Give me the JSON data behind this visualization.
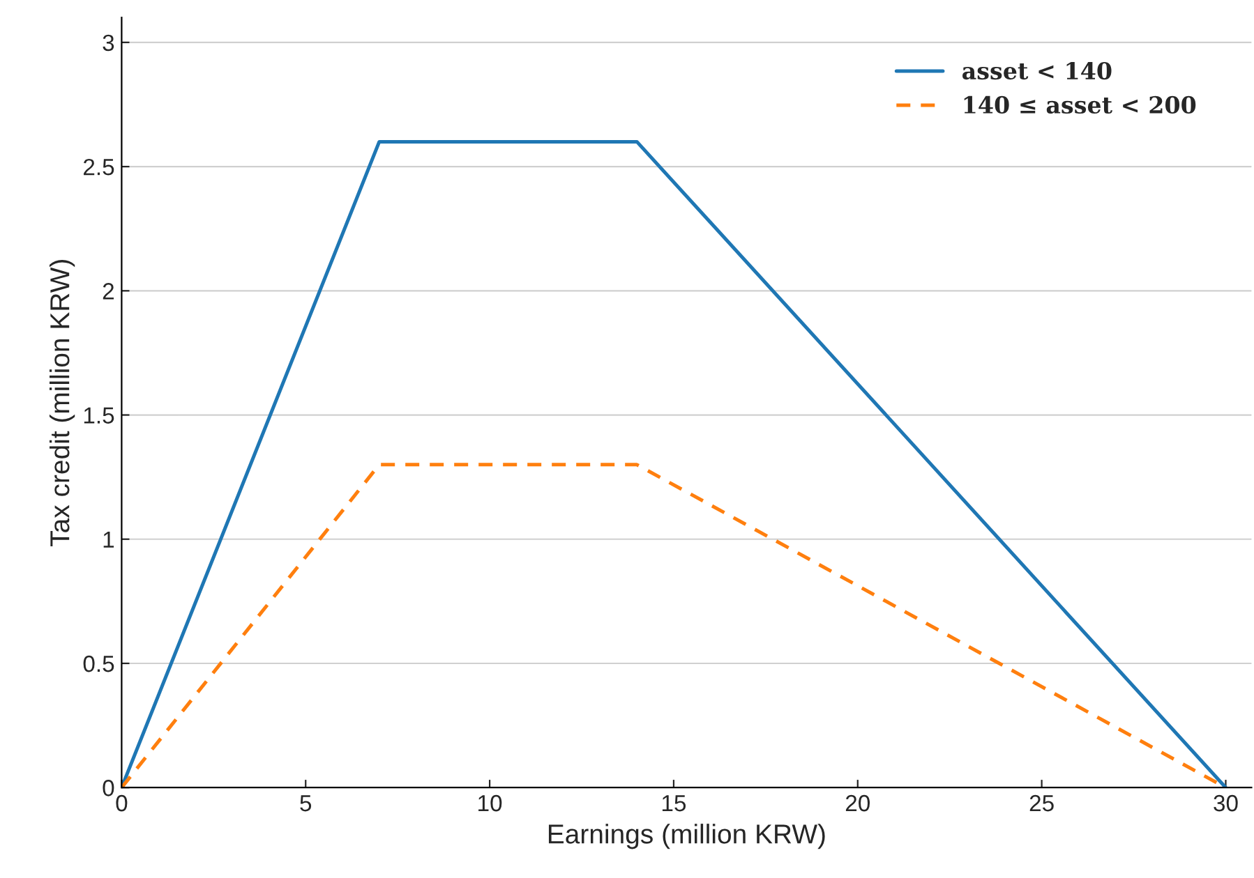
{
  "chart_data": {
    "type": "line",
    "xlabel": "Earnings (million KRW)",
    "ylabel": "Tax credit (million KRW)",
    "xlim": [
      0,
      30.7
    ],
    "ylim": [
      0,
      3.1
    ],
    "xticks": [
      0,
      5,
      10,
      15,
      20,
      25,
      30
    ],
    "yticks": [
      0,
      0.5,
      1,
      1.5,
      2,
      2.5,
      3
    ],
    "grid": "y",
    "legend": "top right",
    "marker": "none",
    "series": [
      {
        "name": "asset < 140",
        "color": "#1f77b4",
        "line_style": "solid",
        "x": [
          0,
          7,
          14,
          30
        ],
        "values": [
          0,
          2.6,
          2.6,
          0
        ]
      },
      {
        "name": "140 ≤ asset < 200",
        "color": "#ff7f0e",
        "line_style": "dashed",
        "x": [
          0,
          7,
          14,
          30
        ],
        "values": [
          0,
          1.3,
          1.3,
          0
        ]
      }
    ]
  }
}
